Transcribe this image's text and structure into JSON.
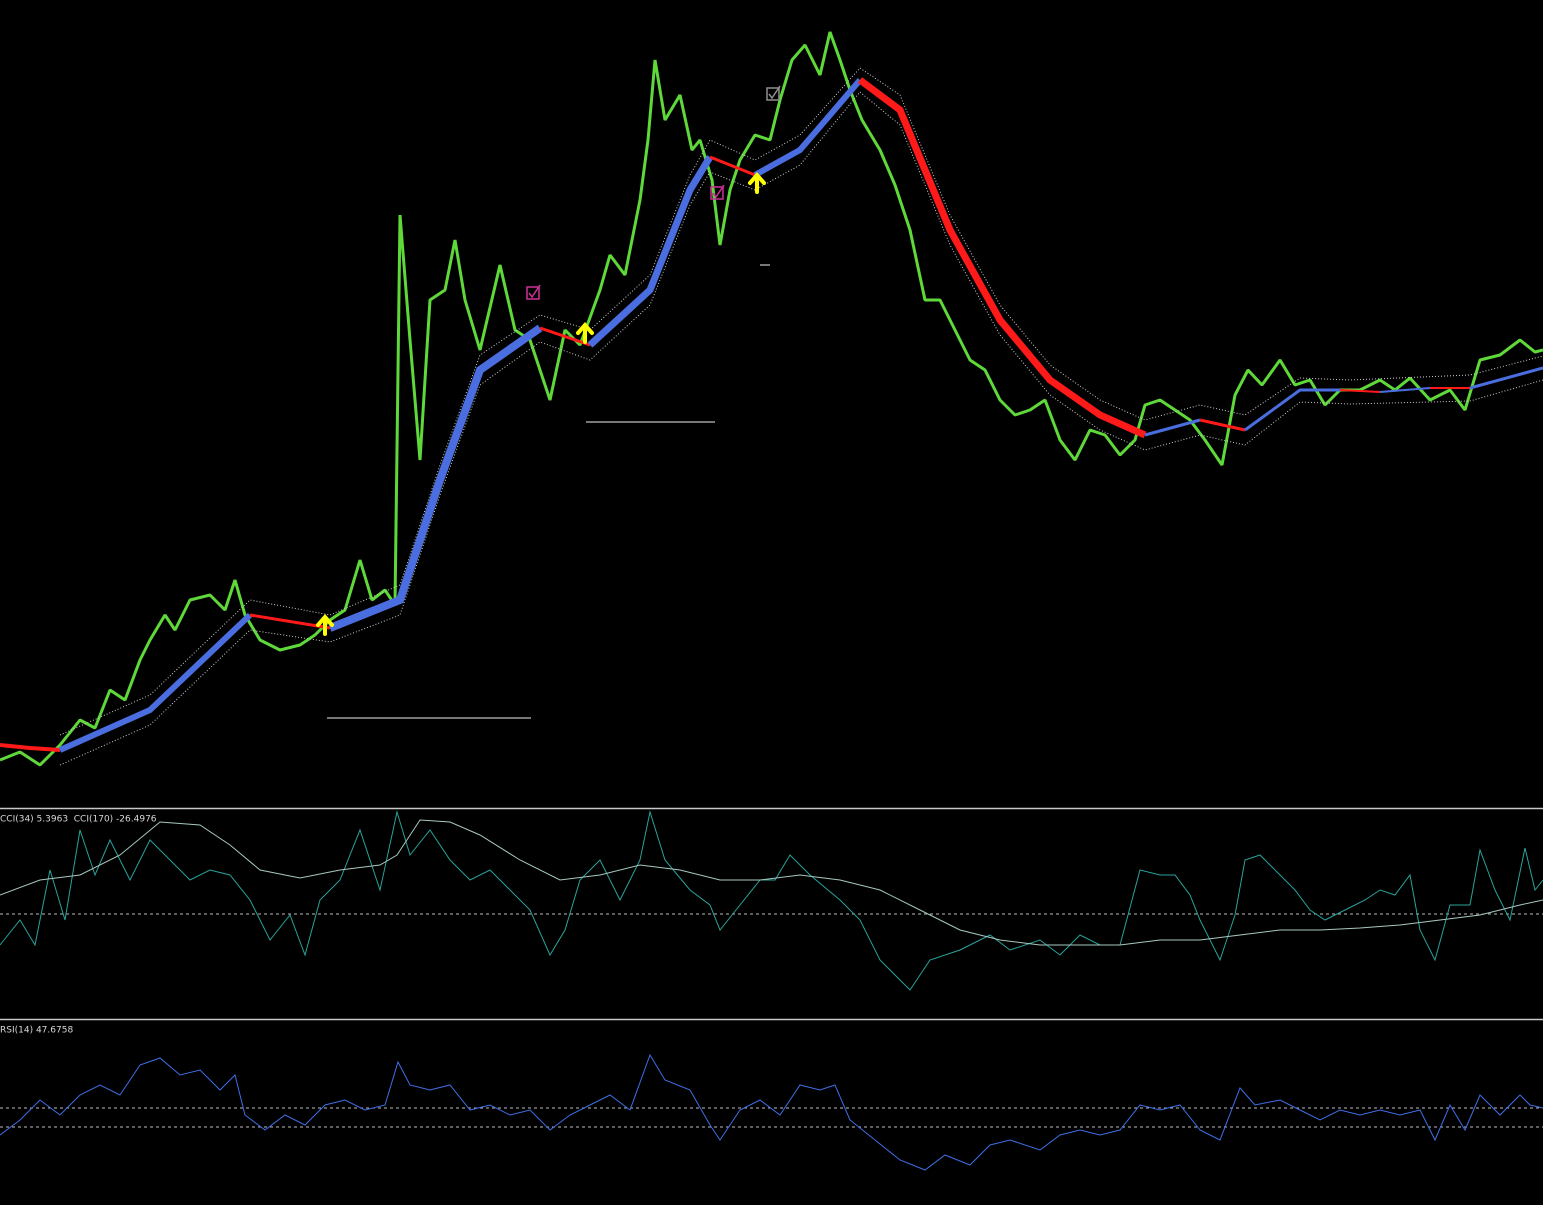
{
  "cci_pane": {
    "label": "CCI(34) 5.3963  CCI(170) -26.4976"
  },
  "rsi_pane": {
    "label": "RSI(14) 47.6758"
  }
}
